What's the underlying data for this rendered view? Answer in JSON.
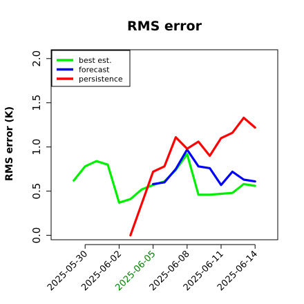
{
  "chart_data": {
    "type": "line",
    "title": "RMS error",
    "xlabel": "",
    "ylabel": "RMS error (K)",
    "ylim": [
      -0.05,
      2.1
    ],
    "yticks": [
      "0.0",
      "0.5",
      "1.0",
      "1.5",
      "2.0"
    ],
    "xtick_labels": [
      {
        "label": "2025-05-30",
        "color": "#000000"
      },
      {
        "label": "2025-06-02",
        "color": "#000000"
      },
      {
        "label": "2025-06-05",
        "color": "#008000"
      },
      {
        "label": "2025-06-08",
        "color": "#000000"
      },
      {
        "label": "2025-06-11",
        "color": "#000000"
      },
      {
        "label": "2025-06-14",
        "color": "#000000"
      }
    ],
    "legend_position": "top-left",
    "series": [
      {
        "name": "best est.",
        "color": "#00ee00",
        "x": [
          "2025-05-29",
          "2025-05-30",
          "2025-05-31",
          "2025-06-01",
          "2025-06-02",
          "2025-06-03",
          "2025-06-04",
          "2025-06-05",
          "2025-06-06",
          "2025-06-07",
          "2025-06-08",
          "2025-06-09",
          "2025-06-10",
          "2025-06-11",
          "2025-06-12",
          "2025-06-13",
          "2025-06-14"
        ],
        "values": [
          0.62,
          0.78,
          0.84,
          0.8,
          0.37,
          0.41,
          0.52,
          0.57,
          0.61,
          0.74,
          0.92,
          0.46,
          0.46,
          0.47,
          0.48,
          0.58,
          0.56
        ]
      },
      {
        "name": "forecast",
        "color": "#0000ff",
        "x": [
          "2025-06-05",
          "2025-06-06",
          "2025-06-07",
          "2025-06-08",
          "2025-06-09",
          "2025-06-10",
          "2025-06-11",
          "2025-06-12",
          "2025-06-13",
          "2025-06-14"
        ],
        "values": [
          0.58,
          0.6,
          0.75,
          0.97,
          0.78,
          0.76,
          0.57,
          0.72,
          0.63,
          0.61
        ]
      },
      {
        "name": "persistence",
        "color": "#ff0000",
        "x": [
          "2025-06-03",
          "2025-06-04",
          "2025-06-05",
          "2025-06-06",
          "2025-06-07",
          "2025-06-08",
          "2025-06-09",
          "2025-06-10",
          "2025-06-11",
          "2025-06-12",
          "2025-06-13",
          "2025-06-14"
        ],
        "values": [
          0.0,
          0.36,
          0.72,
          0.78,
          1.11,
          0.98,
          1.06,
          0.9,
          1.1,
          1.16,
          1.33,
          1.22
        ]
      }
    ]
  }
}
